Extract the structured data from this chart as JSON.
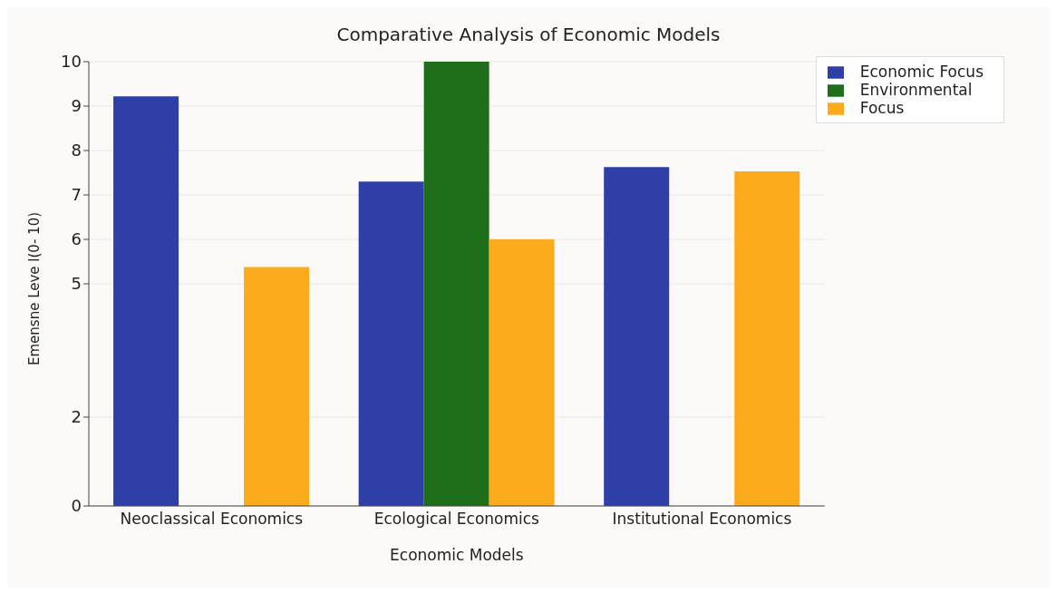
{
  "chart_data": {
    "type": "bar",
    "title": "Comparative Analysis of Economic Models",
    "xlabel": "Economic Models",
    "ylabel": "Emensne Leve l(0- 10)",
    "categories": [
      "Neoclassical Economics",
      "Ecological Economics",
      "Institutional Economics"
    ],
    "series": [
      {
        "name": "Economic Focus",
        "color": "#2f3fa8",
        "values": [
          9.22,
          7.3,
          7.63
        ]
      },
      {
        "name": "Environmental",
        "color": "#1e6e1a",
        "values": [
          null,
          10,
          null
        ]
      },
      {
        "name": "Focus",
        "color": "#fbab1b",
        "values": [
          5.38,
          6.0,
          7.53
        ]
      }
    ],
    "ylim": [
      0,
      10
    ],
    "yticks": [
      0,
      2,
      5,
      6,
      7,
      8,
      9,
      10
    ],
    "grid": "y",
    "legend": "top right"
  }
}
